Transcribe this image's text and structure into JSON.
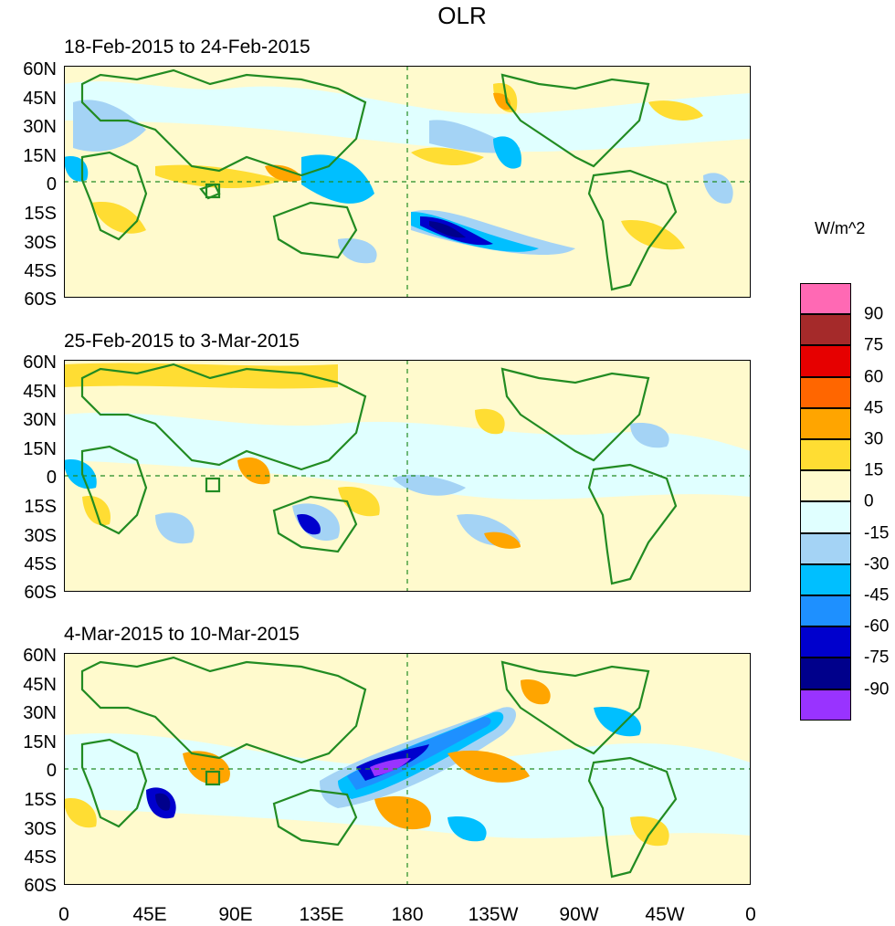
{
  "title": "OLR",
  "panels": [
    {
      "title": "18-Feb-2015 to 24-Feb-2015"
    },
    {
      "title": "25-Feb-2015 to 3-Mar-2015"
    },
    {
      "title": "4-Mar-2015 to 10-Mar-2015"
    }
  ],
  "lat_labels": [
    "60N",
    "45N",
    "30N",
    "15N",
    "0",
    "15S",
    "30S",
    "45S",
    "60S"
  ],
  "lon_labels": [
    "0",
    "45E",
    "90E",
    "135E",
    "180",
    "135W",
    "90W",
    "45W",
    "0"
  ],
  "colorbar": {
    "units": "W/m^2",
    "labels": [
      "90",
      "75",
      "60",
      "45",
      "30",
      "15",
      "0",
      "-15",
      "-30",
      "-45",
      "-60",
      "-75",
      "-90"
    ],
    "colors": [
      "#ff69b4",
      "#a52a2a",
      "#e60000",
      "#ff6600",
      "#ffa500",
      "#ffdd33",
      "#fffacd",
      "#e0ffff",
      "#a4d3f5",
      "#00bfff",
      "#1e90ff",
      "#0000cd",
      "#00008b",
      "#9933ff"
    ]
  },
  "coast_color": "#228b22"
}
